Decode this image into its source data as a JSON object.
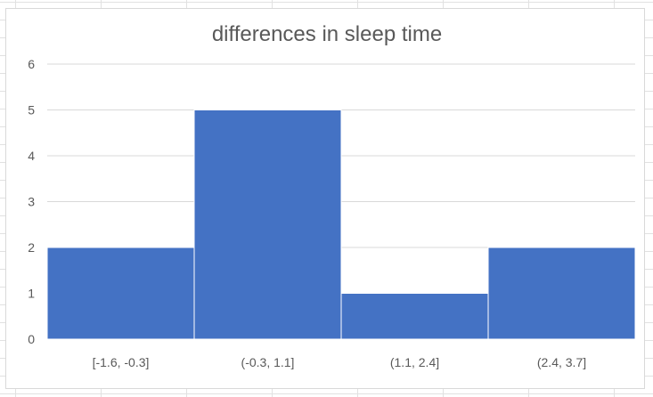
{
  "chart_data": {
    "type": "bar",
    "title": "differences in sleep time",
    "xlabel": "",
    "ylabel": "",
    "categories": [
      "[-1.6, -0.3]",
      "(-0.3, 1.1]",
      "(1.1, 2.4]",
      "(2.4, 3.7]"
    ],
    "values": [
      2,
      5,
      1,
      2
    ],
    "ylim": [
      0,
      6
    ],
    "yticks": [
      "0",
      "1",
      "2",
      "3",
      "4",
      "5",
      "6"
    ],
    "grid": true,
    "legend": "none",
    "bar_color": "#4472c4"
  }
}
